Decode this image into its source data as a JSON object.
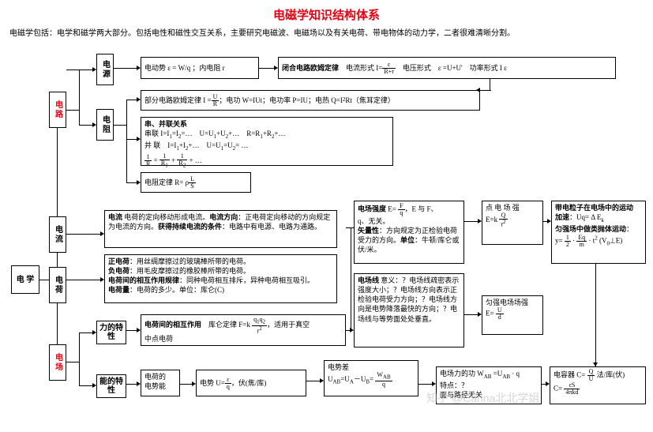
{
  "title": "电磁学知识结构体系",
  "intro": "电磁学包括：电学和磁学两大部分。包括电性和磁性交互关系，主要研究电磁波、电磁场以及有关电荷、带电物体的动力学，二者很难清晰分割。",
  "nodes": {
    "root": "电 学",
    "circuit": "电路",
    "source": "电源",
    "resist": "电阻",
    "current": "电流",
    "charge": "电荷",
    "field": "电场",
    "force_prop": "力的特性",
    "energy_prop": "能的特性"
  },
  "b": {
    "emf": "电动势  ε = W/q ；内电阻 r",
    "closed": "<b>闭合电路欧姆定律</b>　电流形式  I= <span class='frac'><span class='n'>ε</span><span class='d'>R+r</span></span>　电压形式　ε =U+U'　功率形式  I ε",
    "ohm": "部分电路欧姆定律  I = <span class='frac'><span class='n'>U</span><span class='d'>R</span></span>；电功  W=IUt；电功率 P=IU；电热  Q=I<sup>2</sup>Rt（焦耳定律）",
    "series": "<b>串、并联关系</b><br>串联  I=I<sub>1</sub>=I<sub>2</sub>=…　U=U<sub>1</sub>+U<sub>2</sub>+…　R=R<sub>1</sub>+R<sub>2</sub>+…<br>并 联　I=I<sub>1</sub>+I<sub>2</sub>+…　U=U<sub>1</sub>=U<sub>2</sub>= …<br><span class='frac'><span class='n'>1</span><span class='d'>R</span></span> = <span class='frac'><span class='n'>1</span><span class='d'>R<sub>1</sub></span></span> + <span class='frac'><span class='n'>1</span><span class='d'>R<sub>2</sub></span></span> + …",
    "rlaw": "电阻定律  R= ρ <span class='frac'><span class='n'>L</span><span class='d'>S</span></span>",
    "curdef": "<b>电流</b>  电荷的定向移动形成电流。<b>电流方向</b>：正电荷定向移动的方向规定为电流的方向。<b>获得持续电流的条件</b>：电路中有电源、电路为通路。",
    "chgdef": "<b>正电荷</b>：用丝绸摩擦过的玻璃棒所带的电荷。<br><b>负电荷</b>：用毛皮摩擦过的橡胶棒所带的电荷。<br><b>电荷间的相互作用规律</b>：同种电荷相互排斥，异种电荷相互吸引。<br><b>电荷量</b>：电荷的多少。单位：库仑(C)",
    "coulomb": "<b>电荷间的相互作用</b>　库仑定律  F=k <span class='frac'><span class='n'>q<sub>1</sub>q<sub>2</sub></span><span class='d'>r<sup>2</sup></span></span>，适用于真空<br>中点电荷",
    "pe": "电荷的<br>电势能",
    "pot": "电势  U= <span class='frac'><span class='n'>ε</span><span class='d'>q</span></span>，伏(焦/库)",
    "voltdiff": "电势差<br>U<sub>AB</sub>=U<sub>A</sub>－U<sub>B</sub>= <span class='frac'><span class='n'>W<sub>AB</sub></span><span class='d'>q</span></span>",
    "efield": "<b>电场强度</b>  E= <span class='frac'><span class='n'>F</span><span class='d'>q</span></span>，E 与 F、<br>q、无关。<br><b>矢量性</b>：方向规定为正检验电荷受力的方向。<b>单位</b>：牛顿/库仑或伏/米。",
    "eline": "<b>电场线</b>  意义：？电场线疏密表示强度大小；？电场线方向表示正检验电荷受力方向；？电场线方向是电势降落最快的方向；？电场线与等势面处处垂直。",
    "point": "点 电 场 强<br>E=k <span class='frac'><span class='n'>Q</span><span class='d'>r<sup>2</sup></span></span>",
    "uniform": "匀强电场场强<br>E= <span class='frac'><span class='n'>U</span><span class='d'>d</span></span>",
    "motion": "<b>带电粒子在电场中的运动</b><br><b>加速</b>：Uq= Δ E<sub>k</sub><br><b>匀强场中做类抛体运动</b>：<br>y= <span class='frac'><span class='n'>1</span><span class='d'>2</span></span> · <span class='frac'><span class='n'>Eq</span><span class='d'>m</span></span> · t<sup>2</sup> (V<sub>0</sub>⊥E)",
    "work": "电场力的功  W<sub>AB</sub> =U<sub>AB</sub> · q<br>特点：？<br>面与路径无关",
    "cap": "电容器  C= <span class='frac'><span class='n'>Q</span><span class='d'>U</span></span>  法/库(伏)<br>C= <span class='frac'><span class='n'>εS</span><span class='d'>4πkd</span></span>"
  },
  "wm": "知乎 @Carina北北学姐"
}
